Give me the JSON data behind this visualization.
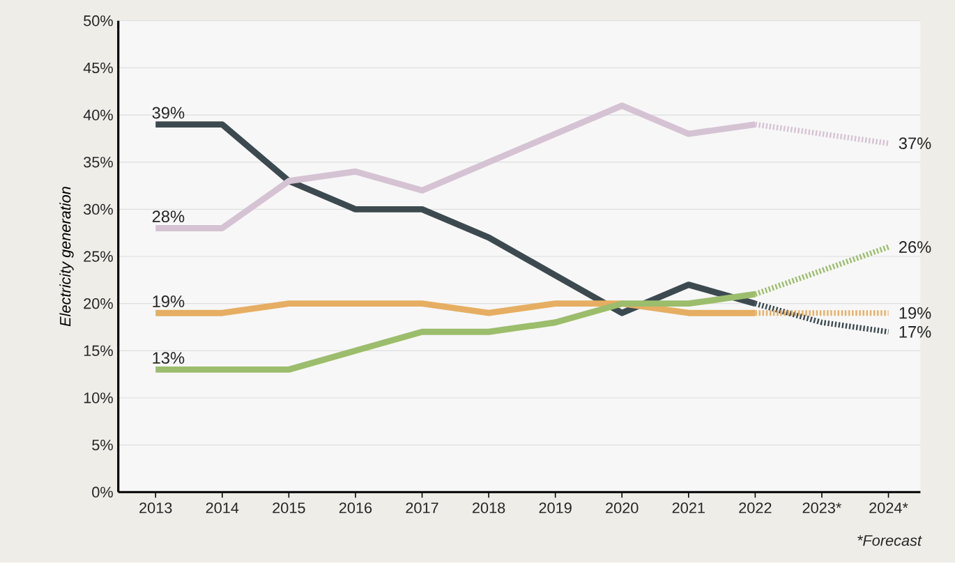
{
  "chart_data": {
    "type": "line",
    "ylabel": "Electricity generation",
    "categories": [
      "2013",
      "2014",
      "2015",
      "2016",
      "2017",
      "2018",
      "2019",
      "2020",
      "2021",
      "2022",
      "2023*",
      "2024*"
    ],
    "series": [
      {
        "color": "#3c4a50",
        "line_style": "solid",
        "values": [
          39,
          39,
          33,
          30,
          30,
          27,
          23,
          19,
          22,
          20,
          null,
          null
        ],
        "value_labels": [
          "39%",
          null,
          null,
          null,
          null,
          null,
          null,
          null,
          null,
          null,
          null,
          null
        ]
      },
      {
        "color": "#d5c3d3",
        "line_style": "solid",
        "values": [
          28,
          28,
          33,
          34,
          32,
          35,
          38,
          41,
          38,
          39,
          null,
          null
        ],
        "value_labels": [
          "28%",
          null,
          null,
          null,
          null,
          null,
          null,
          null,
          null,
          null,
          null,
          null
        ]
      },
      {
        "color": "#e6ae62",
        "line_style": "solid",
        "values": [
          19,
          19,
          20,
          20,
          20,
          19,
          20,
          20,
          19,
          19,
          null,
          null
        ],
        "value_labels": [
          "19%",
          null,
          null,
          null,
          null,
          null,
          null,
          null,
          null,
          null,
          null,
          null
        ]
      },
      {
        "color": "#9cbd6c",
        "line_style": "solid",
        "values": [
          13,
          13,
          13,
          15,
          17,
          17,
          18,
          20,
          20,
          21,
          null,
          null
        ],
        "value_labels": [
          "13%",
          null,
          null,
          null,
          null,
          null,
          null,
          null,
          null,
          null,
          null,
          null
        ]
      },
      {
        "color": "#3c4a50",
        "line_style": "dotted",
        "values": [
          null,
          null,
          null,
          null,
          null,
          null,
          null,
          null,
          null,
          20,
          18,
          17
        ],
        "value_labels": [
          null,
          null,
          null,
          null,
          null,
          null,
          null,
          null,
          null,
          null,
          null,
          "17%"
        ]
      },
      {
        "color": "#d5c3d3",
        "line_style": "dotted",
        "values": [
          null,
          null,
          null,
          null,
          null,
          null,
          null,
          null,
          null,
          39,
          38,
          37
        ],
        "value_labels": [
          null,
          null,
          null,
          null,
          null,
          null,
          null,
          null,
          null,
          null,
          null,
          "37%"
        ]
      },
      {
        "color": "#e6ae62",
        "line_style": "dotted",
        "values": [
          null,
          null,
          null,
          null,
          null,
          null,
          null,
          null,
          null,
          19,
          19,
          19
        ],
        "value_labels": [
          null,
          null,
          null,
          null,
          null,
          null,
          null,
          null,
          null,
          null,
          null,
          "19%"
        ]
      },
      {
        "color": "#9cbd6c",
        "line_style": "dotted",
        "values": [
          null,
          null,
          null,
          null,
          null,
          null,
          null,
          null,
          null,
          21,
          23.5,
          26
        ],
        "value_labels": [
          null,
          null,
          null,
          null,
          null,
          null,
          null,
          null,
          null,
          null,
          null,
          "26%"
        ]
      }
    ],
    "ylim": [
      0,
      50
    ],
    "yticks": [
      {
        "value": 0,
        "label": "0%"
      },
      {
        "value": 5,
        "label": "5%"
      },
      {
        "value": 10,
        "label": "10%"
      },
      {
        "value": 15,
        "label": "15%"
      },
      {
        "value": 20,
        "label": "20%"
      },
      {
        "value": 25,
        "label": "25%"
      },
      {
        "value": 30,
        "label": "30%"
      },
      {
        "value": 35,
        "label": "35%"
      },
      {
        "value": 40,
        "label": "40%"
      },
      {
        "value": 45,
        "label": "45%"
      },
      {
        "value": 50,
        "label": "50%"
      }
    ],
    "grid": "y",
    "annotations": [
      "*Forecast"
    ]
  }
}
